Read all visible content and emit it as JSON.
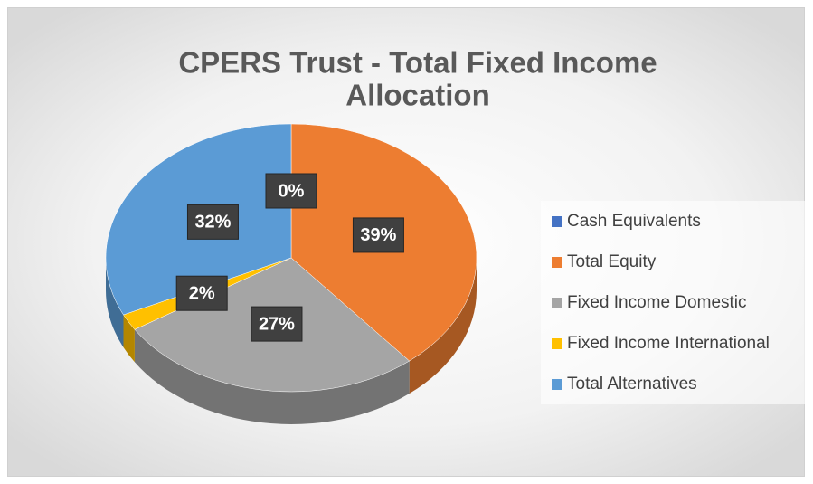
{
  "chart_data": {
    "type": "pie",
    "title": [
      "CPERS Trust - Total Fixed Income",
      "Allocation"
    ],
    "categories": [
      "Cash Equivalents",
      "Total Equity",
      "Fixed Income Domestic",
      "Fixed Income International",
      "Total Alternatives"
    ],
    "values": [
      0,
      39,
      27,
      2,
      32
    ],
    "value_labels": [
      "0%",
      "39%",
      "27%",
      "2%",
      "32%"
    ],
    "colors": [
      "#4472c4",
      "#ed7d31",
      "#a5a5a5",
      "#ffc000",
      "#5b9bd5"
    ],
    "legend": "right"
  }
}
